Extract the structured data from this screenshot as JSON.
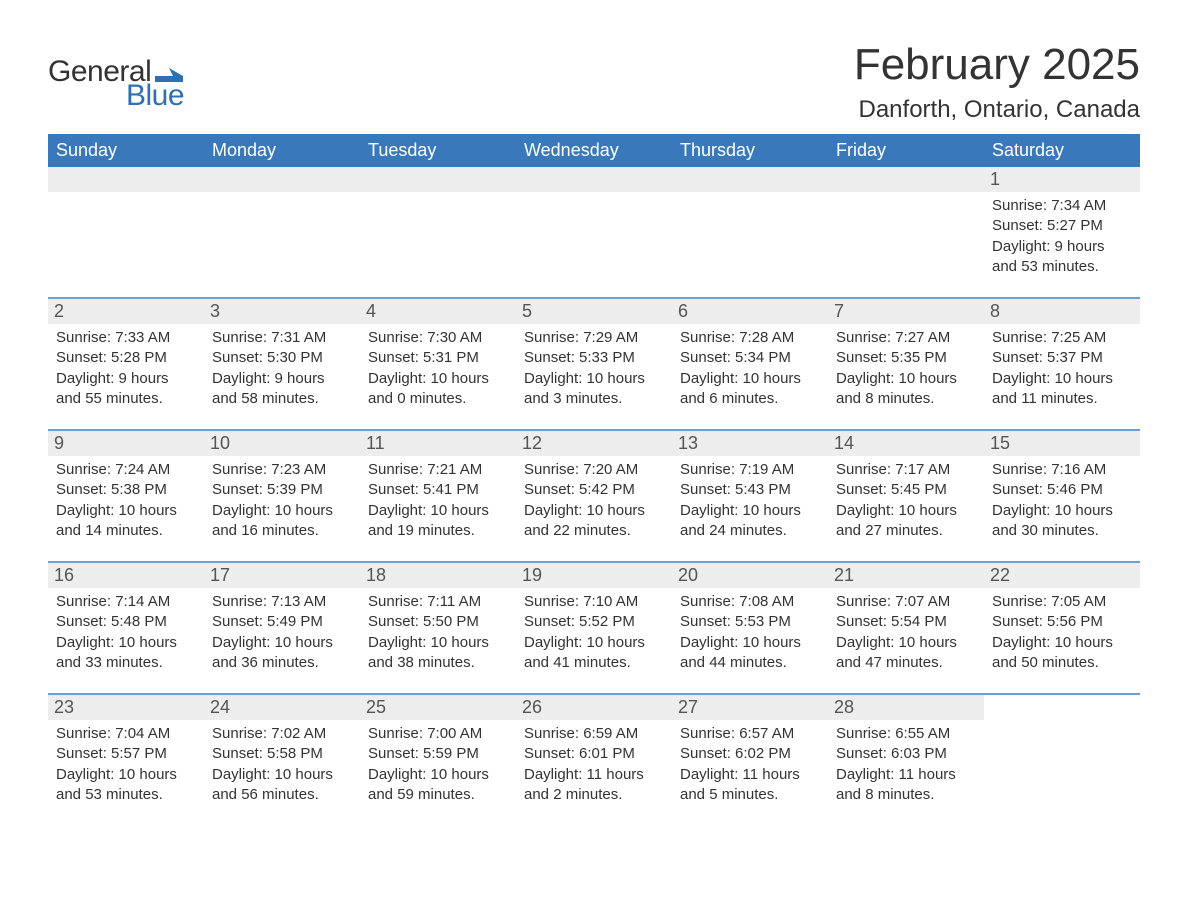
{
  "logo": {
    "text_general": "General",
    "text_blue": "Blue",
    "flag_color": "#2f6fb4"
  },
  "title": "February 2025",
  "location": "Danforth, Ontario, Canada",
  "colors": {
    "header_bg": "#3878bb",
    "header_text": "#ffffff",
    "row_border": "#6a9ed4",
    "daynum_bg": "#ededed",
    "text": "#333333"
  },
  "weekdays": [
    "Sunday",
    "Monday",
    "Tuesday",
    "Wednesday",
    "Thursday",
    "Friday",
    "Saturday"
  ],
  "weeks": [
    [
      null,
      null,
      null,
      null,
      null,
      null,
      {
        "d": "1",
        "sr": "Sunrise: 7:34 AM",
        "ss": "Sunset: 5:27 PM",
        "dl": "Daylight: 9 hours and 53 minutes."
      }
    ],
    [
      {
        "d": "2",
        "sr": "Sunrise: 7:33 AM",
        "ss": "Sunset: 5:28 PM",
        "dl": "Daylight: 9 hours and 55 minutes."
      },
      {
        "d": "3",
        "sr": "Sunrise: 7:31 AM",
        "ss": "Sunset: 5:30 PM",
        "dl": "Daylight: 9 hours and 58 minutes."
      },
      {
        "d": "4",
        "sr": "Sunrise: 7:30 AM",
        "ss": "Sunset: 5:31 PM",
        "dl": "Daylight: 10 hours and 0 minutes."
      },
      {
        "d": "5",
        "sr": "Sunrise: 7:29 AM",
        "ss": "Sunset: 5:33 PM",
        "dl": "Daylight: 10 hours and 3 minutes."
      },
      {
        "d": "6",
        "sr": "Sunrise: 7:28 AM",
        "ss": "Sunset: 5:34 PM",
        "dl": "Daylight: 10 hours and 6 minutes."
      },
      {
        "d": "7",
        "sr": "Sunrise: 7:27 AM",
        "ss": "Sunset: 5:35 PM",
        "dl": "Daylight: 10 hours and 8 minutes."
      },
      {
        "d": "8",
        "sr": "Sunrise: 7:25 AM",
        "ss": "Sunset: 5:37 PM",
        "dl": "Daylight: 10 hours and 11 minutes."
      }
    ],
    [
      {
        "d": "9",
        "sr": "Sunrise: 7:24 AM",
        "ss": "Sunset: 5:38 PM",
        "dl": "Daylight: 10 hours and 14 minutes."
      },
      {
        "d": "10",
        "sr": "Sunrise: 7:23 AM",
        "ss": "Sunset: 5:39 PM",
        "dl": "Daylight: 10 hours and 16 minutes."
      },
      {
        "d": "11",
        "sr": "Sunrise: 7:21 AM",
        "ss": "Sunset: 5:41 PM",
        "dl": "Daylight: 10 hours and 19 minutes."
      },
      {
        "d": "12",
        "sr": "Sunrise: 7:20 AM",
        "ss": "Sunset: 5:42 PM",
        "dl": "Daylight: 10 hours and 22 minutes."
      },
      {
        "d": "13",
        "sr": "Sunrise: 7:19 AM",
        "ss": "Sunset: 5:43 PM",
        "dl": "Daylight: 10 hours and 24 minutes."
      },
      {
        "d": "14",
        "sr": "Sunrise: 7:17 AM",
        "ss": "Sunset: 5:45 PM",
        "dl": "Daylight: 10 hours and 27 minutes."
      },
      {
        "d": "15",
        "sr": "Sunrise: 7:16 AM",
        "ss": "Sunset: 5:46 PM",
        "dl": "Daylight: 10 hours and 30 minutes."
      }
    ],
    [
      {
        "d": "16",
        "sr": "Sunrise: 7:14 AM",
        "ss": "Sunset: 5:48 PM",
        "dl": "Daylight: 10 hours and 33 minutes."
      },
      {
        "d": "17",
        "sr": "Sunrise: 7:13 AM",
        "ss": "Sunset: 5:49 PM",
        "dl": "Daylight: 10 hours and 36 minutes."
      },
      {
        "d": "18",
        "sr": "Sunrise: 7:11 AM",
        "ss": "Sunset: 5:50 PM",
        "dl": "Daylight: 10 hours and 38 minutes."
      },
      {
        "d": "19",
        "sr": "Sunrise: 7:10 AM",
        "ss": "Sunset: 5:52 PM",
        "dl": "Daylight: 10 hours and 41 minutes."
      },
      {
        "d": "20",
        "sr": "Sunrise: 7:08 AM",
        "ss": "Sunset: 5:53 PM",
        "dl": "Daylight: 10 hours and 44 minutes."
      },
      {
        "d": "21",
        "sr": "Sunrise: 7:07 AM",
        "ss": "Sunset: 5:54 PM",
        "dl": "Daylight: 10 hours and 47 minutes."
      },
      {
        "d": "22",
        "sr": "Sunrise: 7:05 AM",
        "ss": "Sunset: 5:56 PM",
        "dl": "Daylight: 10 hours and 50 minutes."
      }
    ],
    [
      {
        "d": "23",
        "sr": "Sunrise: 7:04 AM",
        "ss": "Sunset: 5:57 PM",
        "dl": "Daylight: 10 hours and 53 minutes."
      },
      {
        "d": "24",
        "sr": "Sunrise: 7:02 AM",
        "ss": "Sunset: 5:58 PM",
        "dl": "Daylight: 10 hours and 56 minutes."
      },
      {
        "d": "25",
        "sr": "Sunrise: 7:00 AM",
        "ss": "Sunset: 5:59 PM",
        "dl": "Daylight: 10 hours and 59 minutes."
      },
      {
        "d": "26",
        "sr": "Sunrise: 6:59 AM",
        "ss": "Sunset: 6:01 PM",
        "dl": "Daylight: 11 hours and 2 minutes."
      },
      {
        "d": "27",
        "sr": "Sunrise: 6:57 AM",
        "ss": "Sunset: 6:02 PM",
        "dl": "Daylight: 11 hours and 5 minutes."
      },
      {
        "d": "28",
        "sr": "Sunrise: 6:55 AM",
        "ss": "Sunset: 6:03 PM",
        "dl": "Daylight: 11 hours and 8 minutes."
      },
      null
    ]
  ]
}
